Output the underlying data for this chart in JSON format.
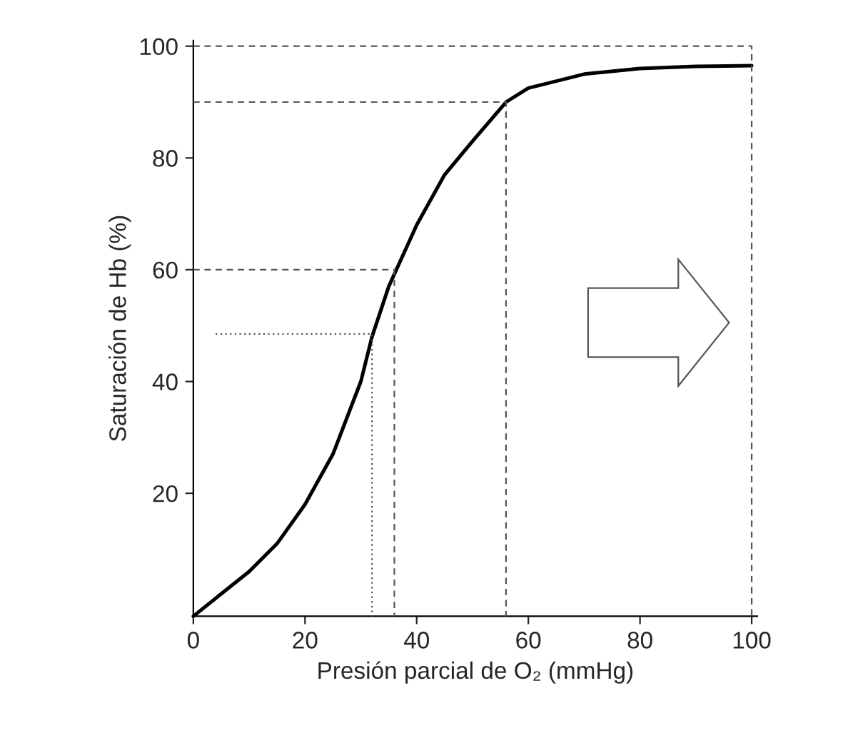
{
  "chart_data": {
    "type": "line",
    "xlabel": "Presión parcial de O₂ (mmHg)",
    "ylabel": "Saturación de Hb (%)",
    "xlim": [
      0,
      101
    ],
    "ylim": [
      -2,
      101
    ],
    "xticks": [
      0,
      20,
      40,
      60,
      80,
      100
    ],
    "yticks": [
      20,
      40,
      60,
      80,
      100
    ],
    "grid": false,
    "legend": false,
    "marker": "none",
    "series": [
      {
        "color": "#000000",
        "line_style": "solid",
        "x": [
          0,
          5,
          10,
          15,
          20,
          25,
          30,
          32,
          35,
          40,
          45,
          50,
          56,
          60,
          70,
          80,
          90,
          100
        ],
        "values": [
          -2,
          2,
          6,
          11,
          18,
          27,
          40,
          48,
          57,
          68,
          77,
          83,
          90,
          92.5,
          95,
          96,
          96.4,
          96.5
        ]
      },
      {
        "color": "#555555",
        "line_style": "dashed",
        "x": [
          0,
          56,
          56
        ],
        "values": [
          90,
          90,
          -2
        ]
      },
      {
        "color": "#555555",
        "line_style": "dashed",
        "x": [
          0,
          36,
          36
        ],
        "values": [
          60,
          60,
          -2
        ]
      },
      {
        "color": "#555555",
        "line_style": "dotted",
        "x": [
          4,
          32,
          32
        ],
        "values": [
          48.5,
          48.5,
          -2
        ]
      },
      {
        "color": "#555555",
        "line_style": "dashed",
        "x": [
          0,
          100,
          100
        ],
        "values": [
          100,
          100,
          -2
        ]
      }
    ]
  }
}
